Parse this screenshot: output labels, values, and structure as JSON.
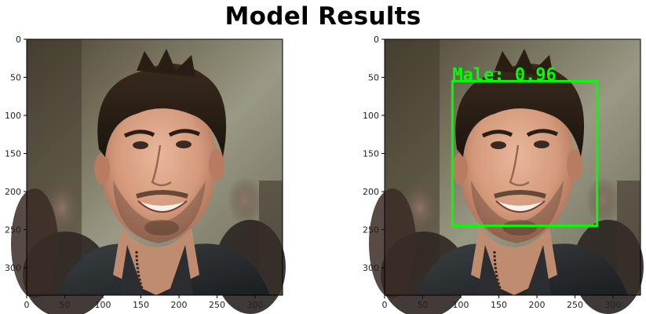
{
  "figure": {
    "title": "Model Results"
  },
  "panels": [
    {
      "name": "original",
      "image_subject": "face-photo",
      "x_ticks": [
        "0",
        "50",
        "100",
        "150",
        "200",
        "250",
        "300"
      ],
      "y_ticks": [
        "0",
        "50",
        "100",
        "150",
        "200",
        "250",
        "300"
      ],
      "x_limit": [
        0,
        336
      ],
      "y_limit": [
        336,
        0
      ]
    },
    {
      "name": "detection",
      "image_subject": "face-photo",
      "x_ticks": [
        "0",
        "50",
        "100",
        "150",
        "200",
        "250",
        "300"
      ],
      "y_ticks": [
        "0",
        "50",
        "100",
        "150",
        "200",
        "250",
        "300"
      ],
      "x_limit": [
        0,
        336
      ],
      "y_limit": [
        336,
        0
      ],
      "detection": {
        "label": "Male: 0.96",
        "color": "#00ff00",
        "x_min": 89,
        "y_min": 55,
        "x_max": 279,
        "y_max": 245
      }
    }
  ]
}
